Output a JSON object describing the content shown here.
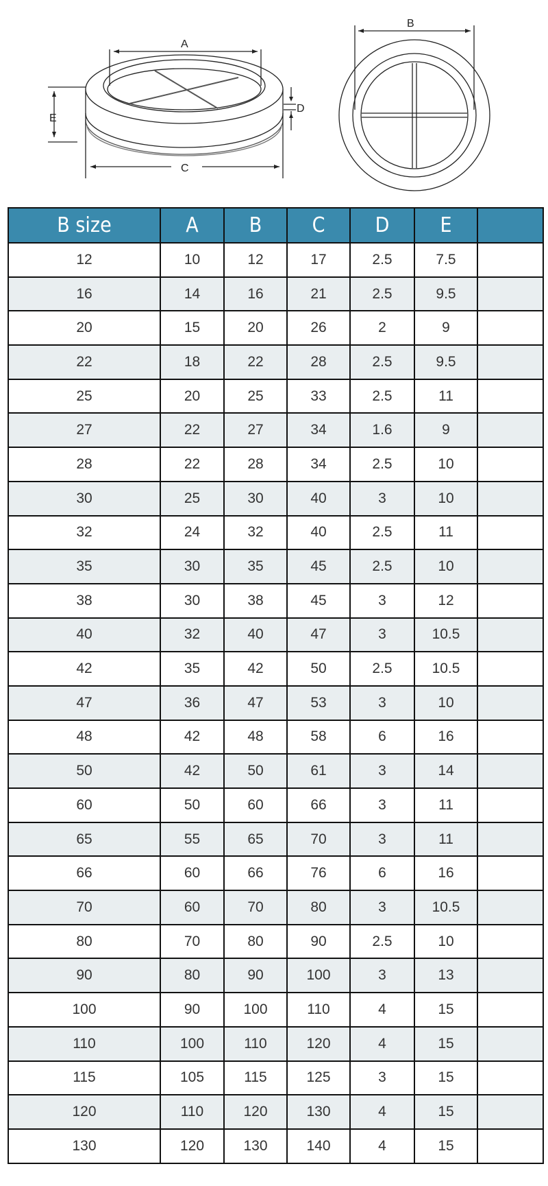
{
  "diagram": {
    "labels": {
      "a": "A",
      "b": "B",
      "c": "C",
      "d": "D",
      "e": "E"
    }
  },
  "table": {
    "headers": [
      "B size",
      "A",
      "B",
      "C",
      "D",
      "E",
      ""
    ],
    "rows": [
      [
        "12",
        "10",
        "12",
        "17",
        "2.5",
        "7.5",
        ""
      ],
      [
        "16",
        "14",
        "16",
        "21",
        "2.5",
        "9.5",
        ""
      ],
      [
        "20",
        "15",
        "20",
        "26",
        "2",
        "9",
        ""
      ],
      [
        "22",
        "18",
        "22",
        "28",
        "2.5",
        "9.5",
        ""
      ],
      [
        "25",
        "20",
        "25",
        "33",
        "2.5",
        "11",
        ""
      ],
      [
        "27",
        "22",
        "27",
        "34",
        "1.6",
        "9",
        ""
      ],
      [
        "28",
        "22",
        "28",
        "34",
        "2.5",
        "10",
        ""
      ],
      [
        "30",
        "25",
        "30",
        "40",
        "3",
        "10",
        ""
      ],
      [
        "32",
        "24",
        "32",
        "40",
        "2.5",
        "11",
        ""
      ],
      [
        "35",
        "30",
        "35",
        "45",
        "2.5",
        "10",
        ""
      ],
      [
        "38",
        "30",
        "38",
        "45",
        "3",
        "12",
        ""
      ],
      [
        "40",
        "32",
        "40",
        "47",
        "3",
        "10.5",
        ""
      ],
      [
        "42",
        "35",
        "42",
        "50",
        "2.5",
        "10.5",
        ""
      ],
      [
        "47",
        "36",
        "47",
        "53",
        "3",
        "10",
        ""
      ],
      [
        "48",
        "42",
        "48",
        "58",
        "6",
        "16",
        ""
      ],
      [
        "50",
        "42",
        "50",
        "61",
        "3",
        "14",
        ""
      ],
      [
        "60",
        "50",
        "60",
        "66",
        "3",
        "11",
        ""
      ],
      [
        "65",
        "55",
        "65",
        "70",
        "3",
        "11",
        ""
      ],
      [
        "66",
        "60",
        "66",
        "76",
        "6",
        "16",
        ""
      ],
      [
        "70",
        "60",
        "70",
        "80",
        "3",
        "10.5",
        ""
      ],
      [
        "80",
        "70",
        "80",
        "90",
        "2.5",
        "10",
        ""
      ],
      [
        "90",
        "80",
        "90",
        "100",
        "3",
        "13",
        ""
      ],
      [
        "100",
        "90",
        "100",
        "110",
        "4",
        "15",
        ""
      ],
      [
        "110",
        "100",
        "110",
        "120",
        "4",
        "15",
        ""
      ],
      [
        "115",
        "105",
        "115",
        "125",
        "3",
        "15",
        ""
      ],
      [
        "120",
        "110",
        "120",
        "130",
        "4",
        "15",
        ""
      ],
      [
        "130",
        "120",
        "130",
        "140",
        "4",
        "15",
        ""
      ]
    ]
  },
  "colors": {
    "header_bg": "#3a8aad",
    "alt_row_bg": "#e9eef0",
    "border": "#111111"
  }
}
